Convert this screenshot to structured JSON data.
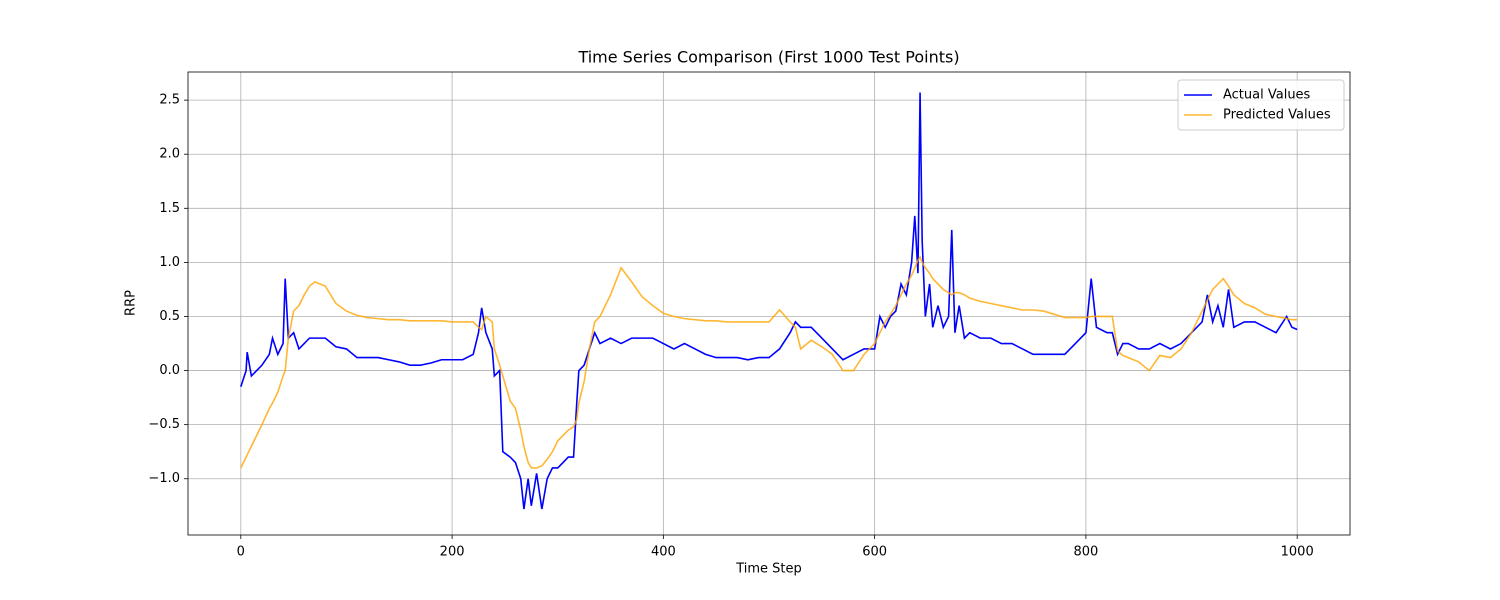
{
  "chart_data": {
    "type": "line",
    "title": "Time Series Comparison (First 1000 Test Points)",
    "x_label": "Time Step",
    "y_label": "RRP",
    "x": [
      0,
      5,
      6,
      10,
      20,
      27,
      30,
      35,
      40,
      42,
      45,
      50,
      55,
      60,
      65,
      70,
      80,
      90,
      100,
      110,
      120,
      130,
      140,
      150,
      160,
      170,
      180,
      190,
      200,
      210,
      220,
      225,
      228,
      232,
      238,
      240,
      245,
      248,
      255,
      260,
      265,
      268,
      272,
      275,
      280,
      285,
      290,
      295,
      300,
      305,
      310,
      315,
      318,
      320,
      325,
      330,
      335,
      340,
      350,
      360,
      370,
      380,
      390,
      400,
      410,
      420,
      430,
      440,
      450,
      460,
      470,
      480,
      490,
      500,
      510,
      520,
      525,
      530,
      540,
      550,
      560,
      570,
      580,
      590,
      600,
      605,
      610,
      615,
      620,
      625,
      630,
      635,
      638,
      641,
      643,
      645,
      648,
      652,
      655,
      660,
      665,
      670,
      673,
      676,
      680,
      685,
      690,
      700,
      710,
      720,
      730,
      740,
      750,
      760,
      770,
      780,
      790,
      800,
      805,
      810,
      820,
      825,
      830,
      835,
      840,
      850,
      860,
      870,
      880,
      890,
      900,
      910,
      915,
      920,
      925,
      930,
      935,
      940,
      950,
      960,
      970,
      980,
      990,
      995,
      1000
    ],
    "series": [
      {
        "name": "Actual Values",
        "color": "#0000ff",
        "values": [
          -0.15,
          0.0,
          0.17,
          -0.05,
          0.05,
          0.15,
          0.3,
          0.15,
          0.25,
          0.85,
          0.3,
          0.35,
          0.2,
          0.25,
          0.3,
          0.3,
          0.3,
          0.22,
          0.2,
          0.12,
          0.12,
          0.12,
          0.1,
          0.08,
          0.05,
          0.05,
          0.07,
          0.1,
          0.1,
          0.1,
          0.15,
          0.35,
          0.58,
          0.35,
          0.2,
          -0.05,
          0.0,
          -0.75,
          -0.8,
          -0.85,
          -1.0,
          -1.28,
          -1.0,
          -1.25,
          -0.95,
          -1.28,
          -1.0,
          -0.9,
          -0.9,
          -0.85,
          -0.8,
          -0.8,
          -0.3,
          0.0,
          0.05,
          0.2,
          0.35,
          0.25,
          0.3,
          0.25,
          0.3,
          0.3,
          0.3,
          0.25,
          0.2,
          0.25,
          0.2,
          0.15,
          0.12,
          0.12,
          0.12,
          0.1,
          0.12,
          0.12,
          0.2,
          0.35,
          0.45,
          0.4,
          0.4,
          0.3,
          0.2,
          0.1,
          0.15,
          0.2,
          0.2,
          0.5,
          0.4,
          0.5,
          0.55,
          0.8,
          0.7,
          1.0,
          1.43,
          0.9,
          2.57,
          1.2,
          0.5,
          0.8,
          0.4,
          0.6,
          0.4,
          0.5,
          1.3,
          0.35,
          0.6,
          0.3,
          0.35,
          0.3,
          0.3,
          0.25,
          0.25,
          0.2,
          0.15,
          0.15,
          0.15,
          0.15,
          0.25,
          0.35,
          0.85,
          0.4,
          0.35,
          0.35,
          0.15,
          0.25,
          0.25,
          0.2,
          0.2,
          0.25,
          0.2,
          0.25,
          0.35,
          0.45,
          0.7,
          0.45,
          0.6,
          0.4,
          0.75,
          0.4,
          0.45,
          0.45,
          0.4,
          0.35,
          0.5,
          0.4,
          0.38
        ]
      },
      {
        "name": "Predicted Values",
        "color": "#ffa500",
        "values": [
          -0.9,
          -0.8,
          -0.78,
          -0.7,
          -0.5,
          -0.35,
          -0.3,
          -0.2,
          -0.05,
          0.0,
          0.3,
          0.55,
          0.6,
          0.7,
          0.78,
          0.82,
          0.78,
          0.62,
          0.55,
          0.51,
          0.49,
          0.48,
          0.47,
          0.47,
          0.46,
          0.46,
          0.46,
          0.46,
          0.45,
          0.45,
          0.45,
          0.4,
          0.38,
          0.5,
          0.45,
          0.2,
          0.05,
          -0.05,
          -0.28,
          -0.35,
          -0.55,
          -0.7,
          -0.85,
          -0.9,
          -0.9,
          -0.88,
          -0.82,
          -0.75,
          -0.65,
          -0.6,
          -0.55,
          -0.52,
          -0.45,
          -0.3,
          -0.1,
          0.2,
          0.45,
          0.5,
          0.7,
          0.95,
          0.82,
          0.68,
          0.6,
          0.53,
          0.5,
          0.48,
          0.47,
          0.46,
          0.46,
          0.45,
          0.45,
          0.45,
          0.45,
          0.45,
          0.56,
          0.45,
          0.4,
          0.2,
          0.28,
          0.22,
          0.15,
          0.0,
          0.0,
          0.15,
          0.25,
          0.35,
          0.45,
          0.52,
          0.6,
          0.7,
          0.8,
          0.88,
          0.95,
          1.02,
          1.05,
          1.0,
          0.95,
          0.9,
          0.85,
          0.8,
          0.75,
          0.72,
          0.7,
          0.72,
          0.72,
          0.7,
          0.67,
          0.64,
          0.62,
          0.6,
          0.58,
          0.56,
          0.56,
          0.55,
          0.52,
          0.49,
          0.49,
          0.49,
          0.5,
          0.5,
          0.5,
          0.5,
          0.18,
          0.14,
          0.12,
          0.08,
          0.0,
          0.14,
          0.12,
          0.2,
          0.35,
          0.55,
          0.65,
          0.75,
          0.8,
          0.85,
          0.78,
          0.7,
          0.62,
          0.58,
          0.52,
          0.5,
          0.48,
          0.47,
          0.47
        ]
      }
    ],
    "xlim": [
      -50,
      1050
    ],
    "ylim": [
      -1.52,
      2.76
    ],
    "xticks": [
      0,
      200,
      400,
      600,
      800,
      1000
    ],
    "yticks": [
      {
        "value": -1.0,
        "label": "−1.0"
      },
      {
        "value": -0.5,
        "label": "−0.5"
      },
      {
        "value": 0,
        "label": "0.0"
      },
      0.5,
      {
        "value": 1.0,
        "label": "1.0"
      },
      1.5,
      {
        "value": 2.0,
        "label": "2.0"
      },
      2.5
    ],
    "grid": true,
    "legend": "upper right"
  }
}
